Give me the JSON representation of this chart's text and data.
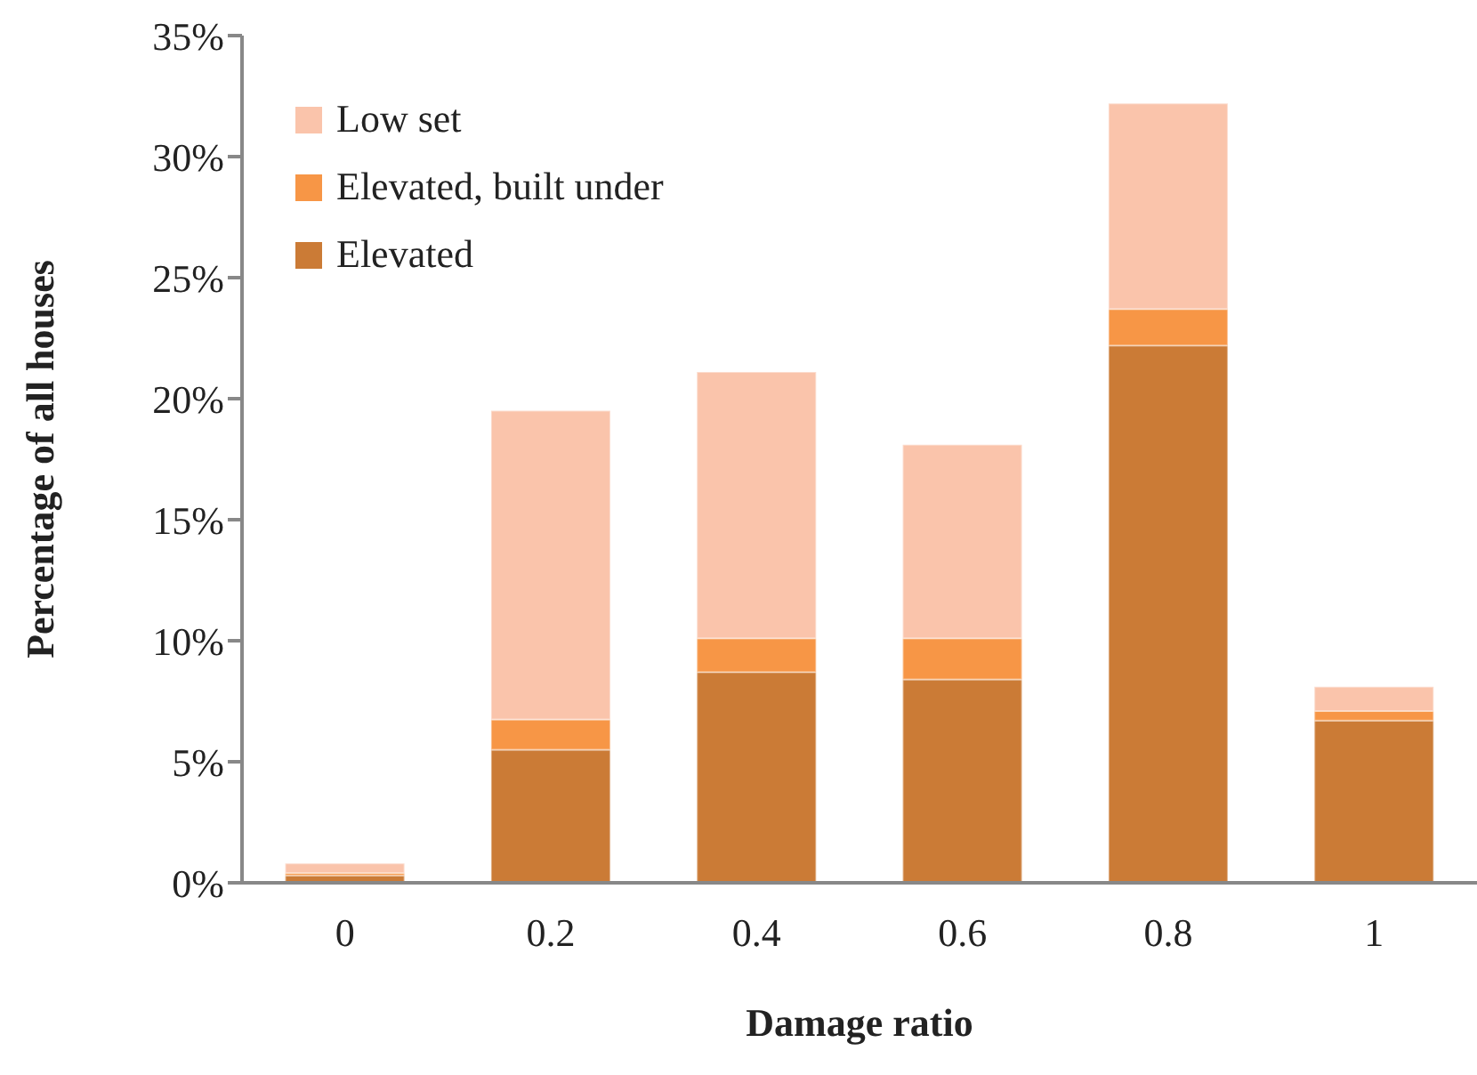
{
  "chart_data": {
    "type": "bar",
    "stacked": true,
    "xlabel": "Damage ratio",
    "ylabel": "Percentage of all houses",
    "categories": [
      "0",
      "0.2",
      "0.4",
      "0.6",
      "0.8",
      "1"
    ],
    "series": [
      {
        "name": "Elevated",
        "color": "#cb7b36",
        "values": [
          0.3,
          5.5,
          8.7,
          8.4,
          22.2,
          6.7
        ]
      },
      {
        "name": "Elevated, built under",
        "color": "#f79646",
        "values": [
          0.1,
          1.25,
          1.4,
          1.7,
          1.5,
          0.4
        ]
      },
      {
        "name": "Low set",
        "color": "#fac4ab",
        "values": [
          0.4,
          12.75,
          11.0,
          8.0,
          8.5,
          1.0
        ]
      }
    ],
    "ylim": [
      0,
      35
    ],
    "yticks": [
      {
        "value": 0,
        "label": "0%"
      },
      {
        "value": 5,
        "label": "5%"
      },
      {
        "value": 10,
        "label": "10%"
      },
      {
        "value": 15,
        "label": "15%"
      },
      {
        "value": 20,
        "label": "20%"
      },
      {
        "value": 25,
        "label": "25%"
      },
      {
        "value": 30,
        "label": "30%"
      },
      {
        "value": 35,
        "label": "35%"
      }
    ],
    "grid": false,
    "legend": "top left"
  }
}
